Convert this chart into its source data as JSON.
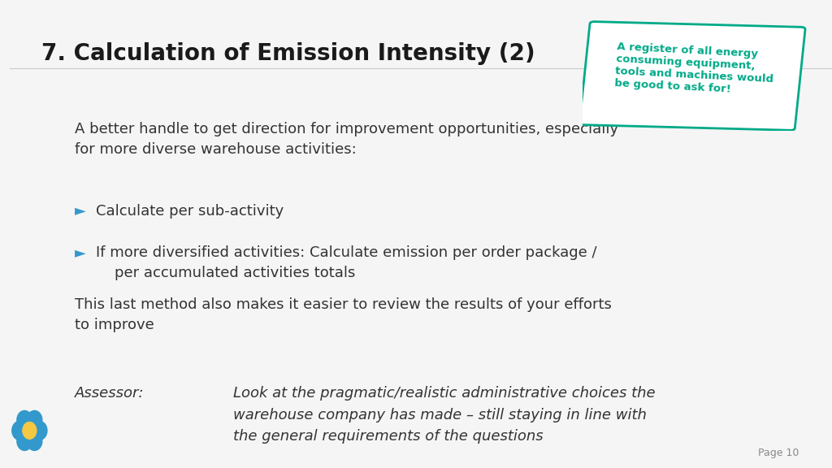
{
  "title": "7. Calculation of Emission Intensity (2)",
  "title_color": "#1a1a1a",
  "title_fontsize": 20,
  "title_bold": true,
  "bg_color": "#f5f5f5",
  "note_text": "A register of all energy\nconsuming equipment,\ntools and machines would\nbe good to ask for!",
  "note_color": "#00aa88",
  "note_border_color": "#00aa88",
  "intro_text": "A better handle to get direction for improvement opportunities, especially\nfor more diverse warehouse activities:",
  "bullet_arrow_color": "#3399cc",
  "bullets": [
    "Calculate per sub-activity",
    "If more diversified activities: Calculate emission per order package /\n    per accumulated activities totals"
  ],
  "body_text": "This last method also makes it easier to review the results of your efforts\nto improve",
  "assessor_label": "Assessor:",
  "assessor_text": "Look at the pragmatic/realistic administrative choices the\nwarehouse company has made – still staying in line with\nthe general requirements of the questions",
  "page_number": "Page 10",
  "text_color": "#333333",
  "font_size_body": 13,
  "font_size_small": 9,
  "left_bar_color": "#4db8a0",
  "logo_color_outer": "#3399cc",
  "logo_color_inner": "#f5c842"
}
